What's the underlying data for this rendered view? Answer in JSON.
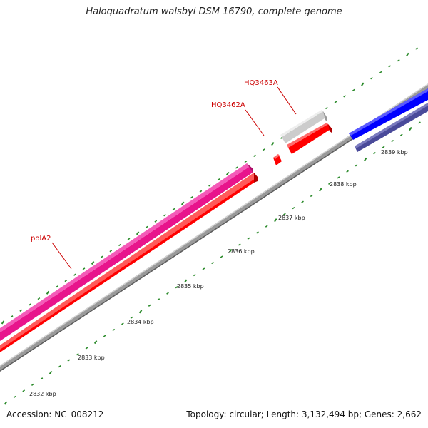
{
  "title": "Haloquadratum walsbyi DSM 16790, complete genome",
  "footer": {
    "accession": "Accession: NC_008212",
    "summary": "Topology: circular; Length: 3,132,494 bp; Genes: 2,662"
  },
  "colors": {
    "background": "#ffffff",
    "backbone": "#8a8a8a",
    "tick": "#2a8a2a",
    "gene_label": "#cc0000",
    "scale_label": "#222222",
    "magenta_gene": "#e8148c",
    "red_gene": "#ff0000",
    "grey_gene": "#cccccc",
    "blue_gene": "#0000ff",
    "purple_gene": "#4a4a9a"
  },
  "scale": {
    "unit": "kbp",
    "labels": [
      "2832 kbp",
      "2833 kbp",
      "2834 kbp",
      "2835 kbp",
      "2836 kbp",
      "2837 kbp",
      "2838 kbp",
      "2839 kbp"
    ]
  },
  "genes": [
    {
      "label": "polA2",
      "color": "magenta_gene"
    },
    {
      "label": "HQ3462A",
      "color": "red_gene"
    },
    {
      "label": "HQ3463A",
      "color": "grey_gene"
    }
  ]
}
